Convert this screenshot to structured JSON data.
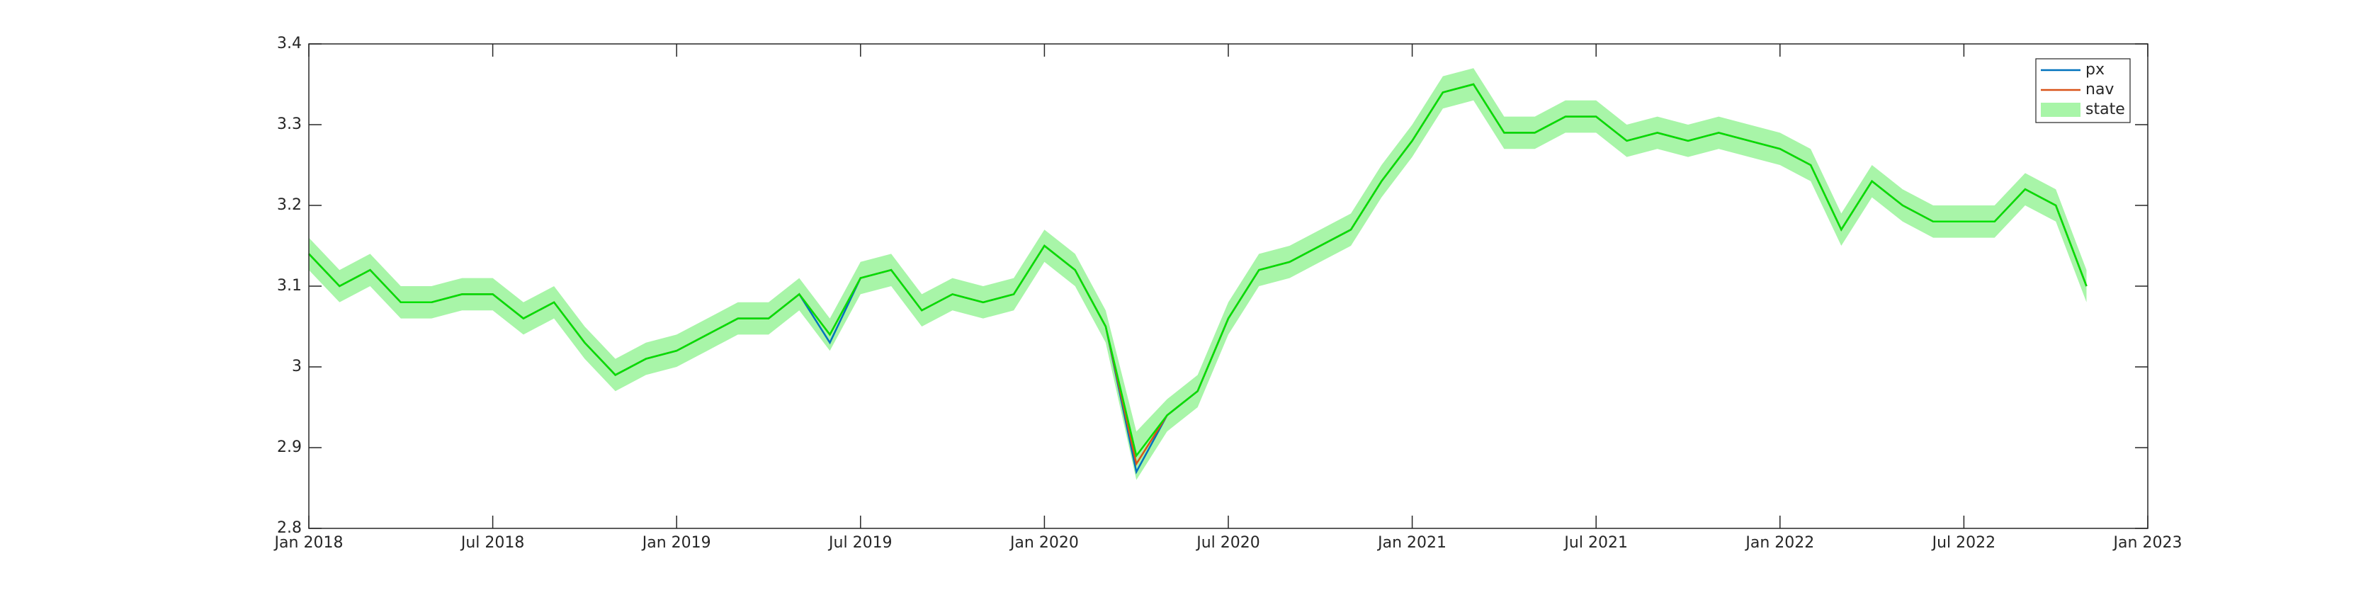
{
  "chart_data": {
    "type": "line",
    "x": [
      "2018-01",
      "2018-02",
      "2018-03",
      "2018-04",
      "2018-05",
      "2018-06",
      "2018-07",
      "2018-08",
      "2018-09",
      "2018-10",
      "2018-11",
      "2018-12",
      "2019-01",
      "2019-02",
      "2019-03",
      "2019-04",
      "2019-05",
      "2019-06",
      "2019-07",
      "2019-08",
      "2019-09",
      "2019-10",
      "2019-11",
      "2019-12",
      "2020-01",
      "2020-02",
      "2020-03",
      "2020-04",
      "2020-05",
      "2020-06",
      "2020-07",
      "2020-08",
      "2020-09",
      "2020-10",
      "2020-11",
      "2020-12",
      "2021-01",
      "2021-02",
      "2021-03",
      "2021-04",
      "2021-05",
      "2021-06",
      "2021-07",
      "2021-08",
      "2021-09",
      "2021-10",
      "2021-11",
      "2021-12",
      "2022-01",
      "2022-02",
      "2022-03",
      "2022-04",
      "2022-05",
      "2022-06",
      "2022-07",
      "2022-08",
      "2022-09",
      "2022-10",
      "2022-11"
    ],
    "series": [
      {
        "name": "px",
        "color": "#0072bd",
        "values": [
          3.14,
          3.1,
          3.12,
          3.08,
          3.08,
          3.09,
          3.09,
          3.06,
          3.08,
          3.03,
          2.99,
          3.01,
          3.02,
          3.04,
          3.06,
          3.06,
          3.09,
          3.03,
          3.11,
          3.12,
          3.07,
          3.09,
          3.08,
          3.09,
          3.15,
          3.12,
          3.05,
          2.87,
          2.94,
          2.97,
          3.06,
          3.12,
          3.13,
          3.15,
          3.17,
          3.23,
          3.28,
          3.34,
          3.35,
          3.29,
          3.29,
          3.31,
          3.31,
          3.28,
          3.29,
          3.28,
          3.29,
          3.28,
          3.27,
          3.25,
          3.17,
          3.23,
          3.2,
          3.18,
          3.18,
          3.18,
          3.22,
          3.2,
          3.1
        ]
      },
      {
        "name": "nav",
        "color": "#d95319",
        "values": [
          3.14,
          3.1,
          3.12,
          3.08,
          3.08,
          3.09,
          3.09,
          3.06,
          3.08,
          3.03,
          2.99,
          3.01,
          3.02,
          3.04,
          3.06,
          3.06,
          3.09,
          3.04,
          3.11,
          3.12,
          3.07,
          3.09,
          3.08,
          3.09,
          3.15,
          3.12,
          3.05,
          2.88,
          2.94,
          2.97,
          3.06,
          3.12,
          3.13,
          3.15,
          3.17,
          3.23,
          3.28,
          3.34,
          3.35,
          3.29,
          3.29,
          3.31,
          3.31,
          3.28,
          3.29,
          3.28,
          3.29,
          3.28,
          3.27,
          3.25,
          3.17,
          3.23,
          3.2,
          3.18,
          3.18,
          3.18,
          3.22,
          3.2,
          3.1
        ]
      },
      {
        "name": "state",
        "color": "#00e000",
        "band_color": "#a8f5a8",
        "values": [
          3.14,
          3.1,
          3.12,
          3.08,
          3.08,
          3.09,
          3.09,
          3.06,
          3.08,
          3.03,
          2.99,
          3.01,
          3.02,
          3.04,
          3.06,
          3.06,
          3.09,
          3.04,
          3.11,
          3.12,
          3.07,
          3.09,
          3.08,
          3.09,
          3.15,
          3.12,
          3.05,
          2.89,
          2.94,
          2.97,
          3.06,
          3.12,
          3.13,
          3.15,
          3.17,
          3.23,
          3.28,
          3.34,
          3.35,
          3.29,
          3.29,
          3.31,
          3.31,
          3.28,
          3.29,
          3.28,
          3.29,
          3.28,
          3.27,
          3.25,
          3.17,
          3.23,
          3.2,
          3.18,
          3.18,
          3.18,
          3.22,
          3.2,
          3.1
        ],
        "upper": [
          3.16,
          3.12,
          3.14,
          3.1,
          3.1,
          3.11,
          3.11,
          3.08,
          3.1,
          3.05,
          3.01,
          3.03,
          3.04,
          3.06,
          3.08,
          3.08,
          3.11,
          3.06,
          3.13,
          3.14,
          3.09,
          3.11,
          3.1,
          3.11,
          3.17,
          3.14,
          3.07,
          2.92,
          2.96,
          2.99,
          3.08,
          3.14,
          3.15,
          3.17,
          3.19,
          3.25,
          3.3,
          3.36,
          3.37,
          3.31,
          3.31,
          3.33,
          3.33,
          3.3,
          3.31,
          3.3,
          3.31,
          3.3,
          3.29,
          3.27,
          3.19,
          3.25,
          3.22,
          3.2,
          3.2,
          3.2,
          3.24,
          3.22,
          3.12
        ],
        "lower": [
          3.12,
          3.08,
          3.1,
          3.06,
          3.06,
          3.07,
          3.07,
          3.04,
          3.06,
          3.01,
          2.97,
          2.99,
          3.0,
          3.02,
          3.04,
          3.04,
          3.07,
          3.02,
          3.09,
          3.1,
          3.05,
          3.07,
          3.06,
          3.07,
          3.13,
          3.1,
          3.03,
          2.86,
          2.92,
          2.95,
          3.04,
          3.1,
          3.11,
          3.13,
          3.15,
          3.21,
          3.26,
          3.32,
          3.33,
          3.27,
          3.27,
          3.29,
          3.29,
          3.26,
          3.27,
          3.26,
          3.27,
          3.26,
          3.25,
          3.23,
          3.15,
          3.21,
          3.18,
          3.16,
          3.16,
          3.16,
          3.2,
          3.18,
          3.08
        ]
      }
    ],
    "xlim": [
      "2018-01",
      "2023-01"
    ],
    "xticks": [
      {
        "value": "2018-01",
        "label": "Jan 2018"
      },
      {
        "value": "2018-07",
        "label": "Jul 2018"
      },
      {
        "value": "2019-01",
        "label": "Jan 2019"
      },
      {
        "value": "2019-07",
        "label": "Jul 2019"
      },
      {
        "value": "2020-01",
        "label": "Jan 2020"
      },
      {
        "value": "2020-07",
        "label": "Jul 2020"
      },
      {
        "value": "2021-01",
        "label": "Jan 2021"
      },
      {
        "value": "2021-07",
        "label": "Jul 2021"
      },
      {
        "value": "2022-01",
        "label": "Jan 2022"
      },
      {
        "value": "2022-07",
        "label": "Jul 2022"
      },
      {
        "value": "2023-01",
        "label": "Jan 2023"
      }
    ],
    "ylim": [
      2.8,
      3.4
    ],
    "yticks": [
      2.8,
      2.9,
      3,
      3.1,
      3.2,
      3.3,
      3.4
    ],
    "grid": false,
    "legend": "northeast"
  }
}
